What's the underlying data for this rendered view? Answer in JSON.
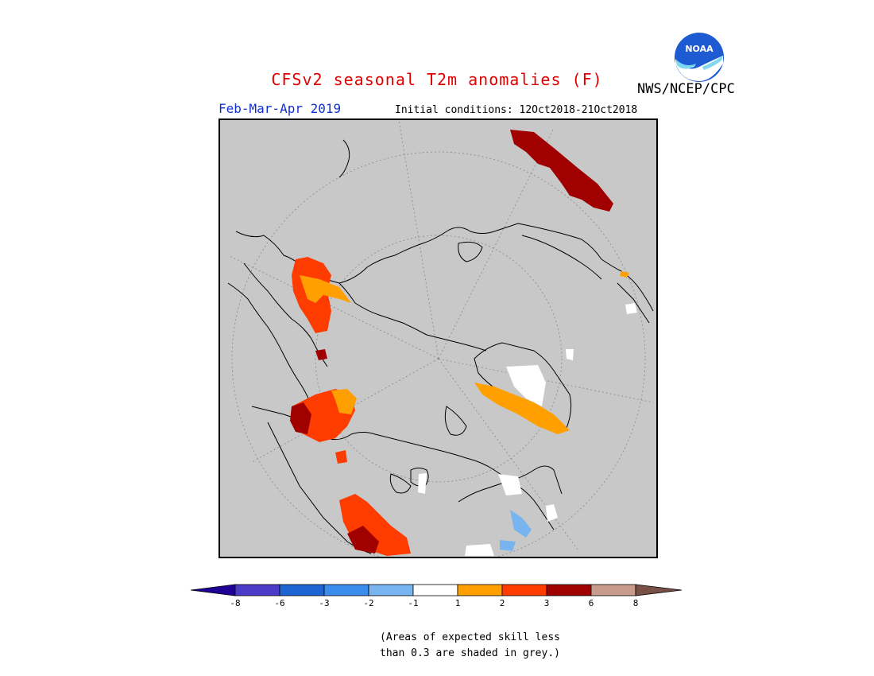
{
  "header": {
    "title": "CFSv2 seasonal T2m anomalies (F)",
    "title_color": "#e00000",
    "period": "Feb-Mar-Apr 2019",
    "period_color": "#1030d0",
    "initial_conditions": "Initial conditions: 12Oct2018-21Oct2018",
    "agency": "NWS/NCEP/CPC"
  },
  "logo": {
    "icon": "noaa-logo",
    "text": "NOAA"
  },
  "map": {
    "projection": "polar-stereographic",
    "background_color": "#c8c8c8",
    "grid": true
  },
  "legend": {
    "colors": [
      "#1e0096",
      "#4b3cc8",
      "#1e64d2",
      "#3c8ceb",
      "#78b4f0",
      "#ffffff",
      "#ffa000",
      "#ff3c00",
      "#a00000",
      "#c89b8c",
      "#785046"
    ],
    "ticks": [
      "-8",
      "-6",
      "-3",
      "-2",
      "-1",
      "1",
      "2",
      "3",
      "6",
      "8"
    ]
  },
  "note": {
    "line1": "(Areas of expected skill less",
    "line2": "than 0.3 are shaded in grey.)"
  }
}
